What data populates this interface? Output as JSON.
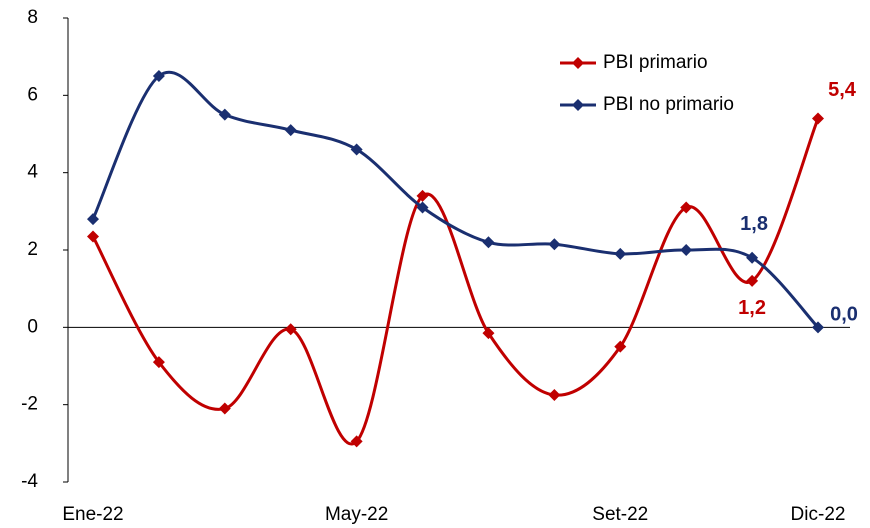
{
  "chart_data": {
    "type": "line",
    "categories": [
      "Ene-22",
      null,
      null,
      null,
      "May-22",
      null,
      null,
      null,
      "Set-22",
      null,
      null,
      "Dic-22"
    ],
    "series": [
      {
        "name": "PBI primario",
        "color": "#c00000",
        "values": [
          2.35,
          -0.9,
          -2.1,
          -0.05,
          -2.95,
          3.4,
          -0.15,
          -1.75,
          -0.5,
          3.1,
          1.2,
          5.4
        ],
        "value_labels": [
          null,
          null,
          null,
          null,
          null,
          null,
          null,
          null,
          null,
          null,
          "1,2",
          "5,4"
        ]
      },
      {
        "name": "PBI no primario",
        "color": "#1a2f70",
        "values": [
          2.8,
          6.5,
          5.5,
          5.1,
          4.6,
          3.1,
          2.2,
          2.15,
          1.9,
          2.0,
          1.8,
          0.0
        ],
        "value_labels": [
          null,
          null,
          null,
          null,
          null,
          null,
          null,
          null,
          null,
          null,
          "1,8",
          "0,0"
        ]
      }
    ],
    "ylim": [
      -4,
      8
    ],
    "yticks": [
      -4,
      -2,
      0,
      2,
      4,
      6,
      8
    ],
    "smooth": true,
    "legend": "top-right"
  }
}
